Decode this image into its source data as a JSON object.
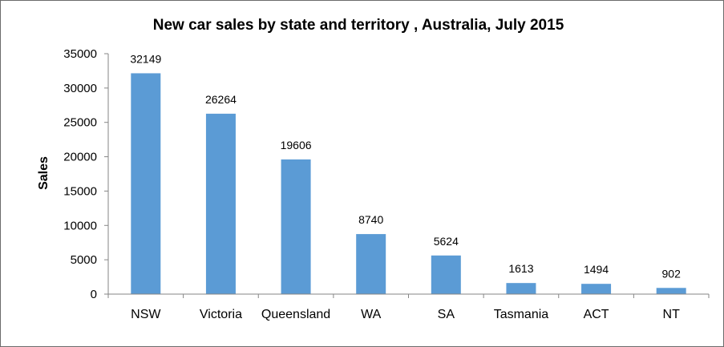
{
  "chart_data": {
    "type": "bar",
    "title": "New car sales by state and territory , Australia, July 2015",
    "xlabel": "",
    "ylabel": "Sales",
    "ylim": [
      0,
      35000
    ],
    "yticks": [
      0,
      5000,
      10000,
      15000,
      20000,
      25000,
      30000,
      35000
    ],
    "grid": false,
    "legend": "none",
    "bar_color": "#5b9bd5",
    "categories": [
      "NSW",
      "Victoria",
      "Queensland",
      "WA",
      "SA",
      "Tasmania",
      "ACT",
      "NT"
    ],
    "values": [
      32149,
      26264,
      19606,
      8740,
      5624,
      1613,
      1494,
      902
    ],
    "data_labels": [
      "32149",
      "26264",
      "19606",
      "8740",
      "5624",
      "1613",
      "1494",
      "902"
    ]
  }
}
